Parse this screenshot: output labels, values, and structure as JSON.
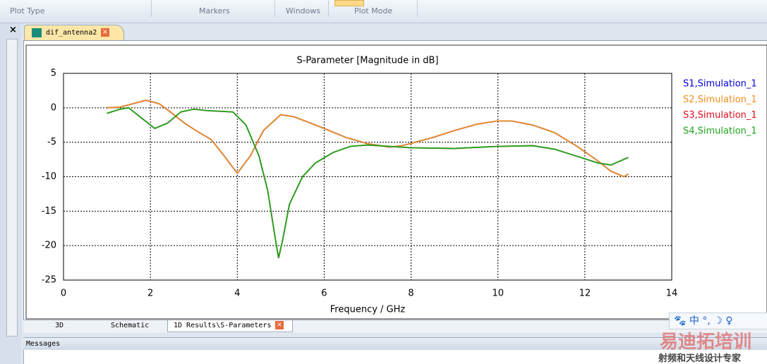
{
  "toolbar": {
    "groups": [
      "Plot Type",
      "Markers",
      "Windows",
      "Plot Mode"
    ]
  },
  "document_tab": "dif_antenna2",
  "view_tabs": [
    "3D",
    "Schematic",
    "1D Results\\S-Parameters"
  ],
  "messages_title": "Messages",
  "watermark": {
    "brand": "易迪拓培训",
    "slogan": "射频和天线设计专家"
  },
  "chart_data": {
    "type": "line",
    "title": "S-Parameter [Magnitude in dB]",
    "x_label": "Frequency / GHz",
    "xlim": [
      0,
      14
    ],
    "xticks": [
      0,
      2,
      4,
      6,
      8,
      10,
      12,
      14
    ],
    "ylim": [
      -25,
      5
    ],
    "yticks": [
      -25,
      -20,
      -15,
      -10,
      -5,
      0,
      5
    ],
    "grid": true,
    "series": [
      {
        "name": "S1,Simulation_1",
        "color": "#0000e0",
        "x": [
          1.0,
          1.3,
          1.6,
          1.9,
          2.2,
          2.5,
          2.8,
          3.1,
          3.4,
          3.7,
          4.0,
          4.3,
          4.6,
          5.0,
          5.3,
          5.6,
          6.0,
          6.5,
          7.0,
          7.5,
          7.8,
          8.5,
          9.0,
          9.5,
          10.0,
          10.3,
          10.8,
          11.3,
          11.8,
          12.3,
          12.6,
          12.9,
          13.0
        ],
        "values": [
          0,
          0.1,
          0.6,
          1.1,
          0.6,
          -0.8,
          -2.3,
          -3.5,
          -4.6,
          -7,
          -9.5,
          -7,
          -3.3,
          -1,
          -1.3,
          -2,
          -3,
          -4.3,
          -5.2,
          -5.7,
          -5.5,
          -4.3,
          -3.3,
          -2.4,
          -1.9,
          -1.9,
          -2.5,
          -3.6,
          -5.5,
          -7.7,
          -9.2,
          -10,
          -9.6
        ]
      },
      {
        "name": "S2,Simulation_1",
        "color": "#f08c1e",
        "x": [
          1.0,
          1.3,
          1.6,
          1.9,
          2.2,
          2.5,
          2.8,
          3.1,
          3.4,
          3.7,
          4.0,
          4.3,
          4.6,
          5.0,
          5.3,
          5.6,
          6.0,
          6.5,
          7.0,
          7.5,
          7.8,
          8.5,
          9.0,
          9.5,
          10.0,
          10.3,
          10.8,
          11.3,
          11.8,
          12.3,
          12.6,
          12.9,
          13.0
        ],
        "values": [
          0,
          0.1,
          0.6,
          1.1,
          0.6,
          -0.8,
          -2.3,
          -3.5,
          -4.6,
          -7,
          -9.5,
          -7,
          -3.3,
          -1,
          -1.3,
          -2,
          -3,
          -4.3,
          -5.2,
          -5.7,
          -5.5,
          -4.3,
          -3.3,
          -2.4,
          -1.9,
          -1.9,
          -2.5,
          -3.6,
          -5.5,
          -7.7,
          -9.2,
          -10,
          -9.6
        ]
      },
      {
        "name": "S3,Simulation_1",
        "color": "#e0101e",
        "x": [
          1.0,
          1.3,
          1.5,
          1.8,
          2.1,
          2.4,
          2.7,
          3.0,
          3.3,
          3.6,
          3.9,
          4.2,
          4.5,
          4.7,
          4.85,
          4.95,
          5.05,
          5.2,
          5.5,
          5.8,
          6.2,
          6.6,
          7.0,
          7.5,
          8.0,
          9.0,
          10.0,
          10.8,
          11.3,
          11.8,
          12.3,
          12.6,
          13.0
        ],
        "values": [
          -0.8,
          -0.2,
          0,
          -1.5,
          -3,
          -2.2,
          -0.6,
          -0.2,
          -0.4,
          -0.5,
          -0.6,
          -2.5,
          -7,
          -12,
          -18,
          -21.8,
          -19,
          -14,
          -10,
          -8,
          -6.5,
          -5.6,
          -5.4,
          -5.6,
          -5.8,
          -5.9,
          -5.6,
          -5.5,
          -6,
          -7,
          -8,
          -8.3,
          -7.2
        ]
      },
      {
        "name": "S4,Simulation_1",
        "color": "#1ea51e",
        "x": [
          1.0,
          1.3,
          1.5,
          1.8,
          2.1,
          2.4,
          2.7,
          3.0,
          3.3,
          3.6,
          3.9,
          4.2,
          4.5,
          4.7,
          4.85,
          4.95,
          5.05,
          5.2,
          5.5,
          5.8,
          6.2,
          6.6,
          7.0,
          7.5,
          8.0,
          9.0,
          10.0,
          10.8,
          11.3,
          11.8,
          12.3,
          12.6,
          13.0
        ],
        "values": [
          -0.8,
          -0.2,
          0,
          -1.5,
          -3,
          -2.2,
          -0.6,
          -0.2,
          -0.4,
          -0.5,
          -0.6,
          -2.5,
          -7,
          -12,
          -18,
          -21.8,
          -19,
          -14,
          -10,
          -8,
          -6.5,
          -5.6,
          -5.4,
          -5.6,
          -5.8,
          -5.9,
          -5.6,
          -5.5,
          -6,
          -7,
          -8,
          -8.3,
          -7.2
        ]
      }
    ]
  }
}
